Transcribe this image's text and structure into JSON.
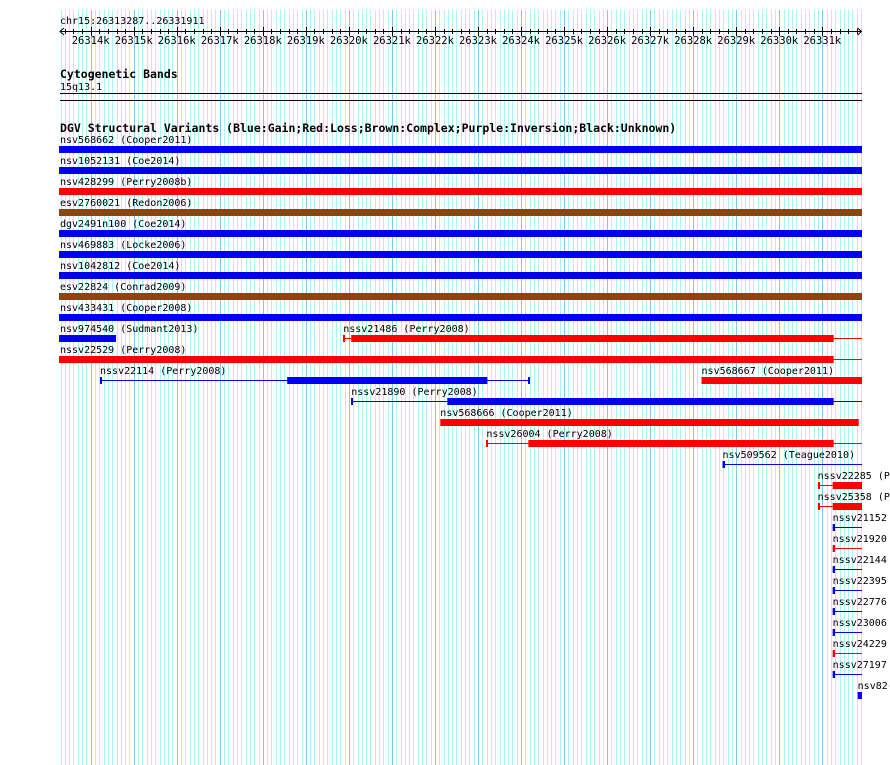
{
  "ruler": {
    "title": "chr15:26313287..26331911",
    "view_start": 26313287,
    "view_end": 26331911,
    "ticks": [
      "26314k",
      "26315k",
      "26316k",
      "26317k",
      "26318k",
      "26319k",
      "26320k",
      "26321k",
      "26322k",
      "26323k",
      "26324k",
      "26325k",
      "26326k",
      "26327k",
      "26328k",
      "26329k",
      "26330k",
      "26331k"
    ]
  },
  "cytoband_track": {
    "title": "Cytogenetic Bands",
    "band": "15q13.1"
  },
  "dgv_track": {
    "title": "DGV Structural Variants (Blue:Gain;Red:Loss;Brown:Complex;Purple:Inversion;Black:Unknown)",
    "colors": {
      "gain": "#0000ee",
      "loss": "#ff0000",
      "complex": "#8b4513",
      "inversion": "#800080",
      "unknown": "#000000"
    },
    "rows": [
      [
        {
          "label": "nsv568662 (Cooper2011)",
          "type": "gain",
          "start": 26313000,
          "end": 26332500
        }
      ],
      [
        {
          "label": "nsv1052131 (Coe2014)",
          "type": "gain",
          "start": 26313000,
          "end": 26332500
        }
      ],
      [
        {
          "label": "nsv428299 (Perry2008b)",
          "type": "loss",
          "start": 26313000,
          "end": 26332500
        }
      ],
      [
        {
          "label": "esv2760021 (Redon2006)",
          "type": "complex",
          "start": 26313000,
          "end": 26332500
        }
      ],
      [
        {
          "label": "dgv2491n100 (Coe2014)",
          "type": "gain",
          "start": 26313000,
          "end": 26332500
        }
      ],
      [
        {
          "label": "nsv469883 (Locke2006)",
          "type": "gain",
          "start": 26313000,
          "end": 26332500
        }
      ],
      [
        {
          "label": "nsv1042812 (Coe2014)",
          "type": "gain",
          "start": 26313000,
          "end": 26332500
        }
      ],
      [
        {
          "label": "esv22824 (Conrad2009)",
          "type": "complex",
          "start": 26313000,
          "end": 26332500
        }
      ],
      [
        {
          "label": "nsv433431 (Cooper2008)",
          "type": "gain",
          "start": 26313000,
          "end": 26332500
        }
      ],
      [
        {
          "label": "nsv974540 (Sudmant2013)",
          "type": "gain",
          "start": 26313250,
          "end": 26314589
        },
        {
          "label": "nssv21486 (Perry2008)",
          "type": "loss",
          "start": 26319868,
          "end": 26332500,
          "thick_start": 26320055,
          "thick_end": 26331264
        }
      ],
      [
        {
          "label": "nssv22529 (Perry2008)",
          "type": "loss",
          "start": 26313250,
          "end": 26332500,
          "thick_start": 26313250,
          "thick_end": 26331264
        }
      ],
      [
        {
          "label": "nssv22114 (Perry2008)",
          "type": "gain",
          "start": 26314217,
          "end": 26324194,
          "thick_start": 26318566,
          "thick_end": 26323217
        },
        {
          "label": "nsv568667 (Cooper2011)",
          "type": "loss",
          "start": 26328194,
          "end": 26332500
        }
      ],
      [
        {
          "label": "nssv21890 (Perry2008)",
          "type": "gain",
          "start": 26320055,
          "end": 26332500,
          "thick_start": 26322287,
          "thick_end": 26331264
        }
      ],
      [
        {
          "label": "nsv568666 (Cooper2011)",
          "type": "loss",
          "start": 26322124,
          "end": 26331845
        }
      ],
      [
        {
          "label": "nssv26004 (Perry2008)",
          "type": "loss",
          "start": 26323194,
          "end": 26332500,
          "thick_start": 26324171,
          "thick_end": 26331264
        }
      ],
      [
        {
          "label": "nsv509562 (Teague2010)",
          "type": "gain",
          "start": 26328682,
          "end": 26332500,
          "thick_start": 26328682,
          "thick_end": 26328720
        }
      ],
      [
        {
          "label": "nssv22285 (Pe",
          "type": "loss",
          "start": 26330892,
          "end": 26332500,
          "thick_start": 26331241,
          "thick_end": 26332500
        }
      ],
      [
        {
          "label": "nssv25358 (Pe",
          "type": "loss",
          "start": 26330892,
          "end": 26332500,
          "thick_start": 26331241,
          "thick_end": 26332500
        }
      ],
      [
        {
          "label": "nssv21152",
          "type": "gain",
          "start": 26331241,
          "end": 26332500,
          "thick_start": 26331241,
          "thick_end": 26331280
        }
      ],
      [
        {
          "label": "nssv21920",
          "type": "loss",
          "start": 26331241,
          "end": 26332500,
          "thick_start": 26331241,
          "thick_end": 26331280
        }
      ],
      [
        {
          "label": "nssv22144",
          "type": "gain",
          "start": 26331241,
          "end": 26332500,
          "thick_start": 26331241,
          "thick_end": 26331280
        }
      ],
      [
        {
          "label": "nssv22395",
          "type": "gain",
          "start": 26331241,
          "end": 26332500,
          "thick_start": 26331241,
          "thick_end": 26331280
        }
      ],
      [
        {
          "label": "nssv22776",
          "type": "gain",
          "start": 26331241,
          "end": 26332500,
          "thick_start": 26331241,
          "thick_end": 26331280
        }
      ],
      [
        {
          "label": "nssv23006",
          "type": "gain",
          "start": 26331241,
          "end": 26332500,
          "thick_start": 26331241,
          "thick_end": 26331280
        }
      ],
      [
        {
          "label": "nssv24229",
          "type": "loss",
          "start": 26331241,
          "end": 26332500,
          "thick_start": 26331241,
          "thick_end": 26331280
        }
      ],
      [
        {
          "label": "nssv27197",
          "type": "gain",
          "start": 26331241,
          "end": 26332500,
          "thick_start": 26331241,
          "thick_end": 26331280
        }
      ],
      [
        {
          "label": "nsv82(",
          "type": "gain",
          "start": 26331822,
          "end": 26332500
        }
      ]
    ]
  }
}
